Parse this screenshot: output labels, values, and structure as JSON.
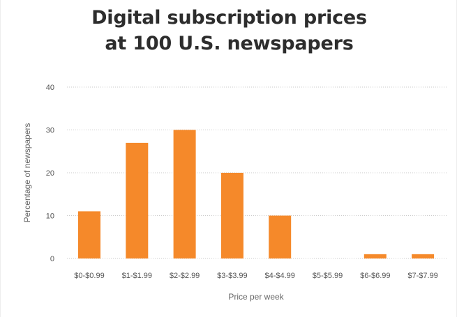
{
  "chart_data": {
    "type": "bar",
    "title_lines": [
      "Digital subscription prices",
      "at 100 U.S. newspapers"
    ],
    "categories": [
      "$0-$0.99",
      "$1-$1.99",
      "$2-$2.99",
      "$3-$3.99",
      "$4-$4.99",
      "$5-$5.99",
      "$6-$6.99",
      "$7-$7.99"
    ],
    "values": [
      11,
      27,
      30,
      20,
      10,
      0,
      1,
      1
    ],
    "xlabel": "Price per week",
    "ylabel": "Percentage of newspapers",
    "ylim": [
      0,
      40
    ],
    "yticks": [
      0,
      10,
      20,
      30,
      40
    ],
    "grid": true,
    "bar_color": "#f5892a",
    "grid_color": "#c8c8c8"
  }
}
